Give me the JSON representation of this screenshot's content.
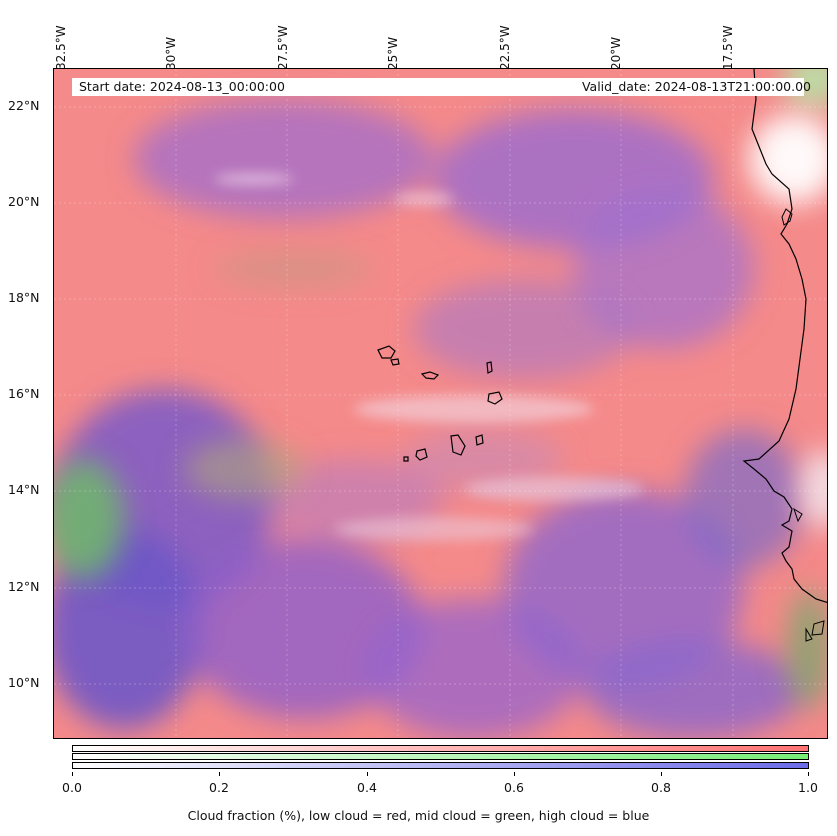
{
  "map": {
    "start_label": "Start date: 2024-08-13_00:00:00",
    "valid_label": "Valid_date: 2024-08-13T21:00:00.00",
    "longitude_labels": [
      "32.5°W",
      "30°W",
      "27.5°W",
      "25°W",
      "22.5°W",
      "20°W",
      "17.5°W"
    ],
    "latitude_labels": [
      "22°N",
      "20°N",
      "18°N",
      "16°N",
      "14°N",
      "12°N",
      "10°N"
    ],
    "colors": {
      "low_cloud": "#ff7272",
      "mid_cloud": "#77ee77",
      "high_cloud": "#6c6ce8",
      "background": "#f58c8c",
      "coastline": "#000000"
    }
  },
  "colorbar": {
    "tick_labels": [
      "0.0",
      "0.2",
      "0.4",
      "0.6",
      "0.8",
      "1.0"
    ],
    "title": "Cloud fraction (%), low cloud = red, mid cloud = green, high cloud = blue"
  }
}
